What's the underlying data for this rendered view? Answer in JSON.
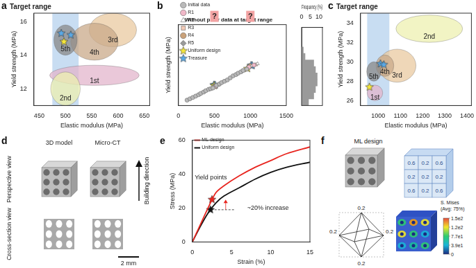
{
  "chart_data": [
    {
      "panel": "a",
      "type": "scatter",
      "title": "Target range",
      "x_label": "Elastic modulus (MPa)",
      "y_label": "Yield strength (MPa)",
      "xlim": [
        440,
        660
      ],
      "xticks": [
        450,
        500,
        550,
        600,
        650
      ],
      "ylim": [
        11,
        16.5
      ],
      "yticks": [
        12,
        14,
        16
      ],
      "target_range": [
        475,
        525
      ],
      "regions": [
        {
          "name": "1st",
          "center": [
            555,
            12.8
          ],
          "radii": [
            85,
            0.6
          ],
          "color": "#e3b5cc"
        },
        {
          "name": "2nd",
          "center": [
            500,
            12.0
          ],
          "radii": [
            28,
            1.0
          ],
          "color": "#eef0b0"
        },
        {
          "name": "3rd",
          "center": [
            590,
            15.5
          ],
          "radii": [
            45,
            1.0
          ],
          "color": "#e9c9a0"
        },
        {
          "name": "4th",
          "center": [
            555,
            14.8
          ],
          "radii": [
            45,
            1.1
          ],
          "color": "#c9a98a"
        },
        {
          "name": "5th",
          "center": [
            500,
            14.9
          ],
          "radii": [
            22,
            0.9
          ],
          "color": "#8a8a8a"
        }
      ],
      "series": [
        {
          "color": "#f5e63a",
          "marker": "star",
          "x": [
            497
          ],
          "values": [
            14.8
          ]
        },
        {
          "color": "#5aa9e6",
          "marker": "star",
          "x": [
            492,
            510
          ],
          "values": [
            15.3,
            15.2
          ]
        }
      ]
    },
    {
      "panel": "b",
      "type": "scatter",
      "title": "Without prior data at target range",
      "x_label": "Elastic modulus (MPa)",
      "y_label": "Yield strength (MPa)",
      "xlim": [
        0,
        1500
      ],
      "xticks": [
        0,
        500,
        1000,
        1500
      ],
      "ylim": [
        0,
        60
      ],
      "tick_labels": "x",
      "legend": "upper left",
      "annotations": [
        {
          "text": "?",
          "x": 500
        },
        {
          "text": "?",
          "x": 1000
        }
      ],
      "series": [
        {
          "name": "Initial data",
          "color": "#b9b9b9",
          "marker": "circle",
          "x": [
            120,
            160,
            200,
            240,
            280,
            310,
            350,
            380,
            420,
            450,
            480,
            530,
            570,
            600,
            640,
            680,
            720,
            760,
            800,
            830,
            870,
            900,
            950
          ],
          "values": [
            4,
            5,
            6,
            7,
            8,
            9,
            10,
            11,
            12,
            12.5,
            13,
            15,
            16,
            17,
            18,
            19,
            20.5,
            22,
            23,
            24,
            25,
            26,
            27
          ]
        },
        {
          "name": "R1",
          "color": "#f0b8c8",
          "marker": "circle",
          "x": [
            520,
            980,
            1050
          ],
          "values": [
            14.3,
            28.5,
            30
          ]
        },
        {
          "name": "R2",
          "color": "#ffffff",
          "marker": "triangle",
          "x": [
            540,
            1020,
            1100
          ],
          "values": [
            15,
            29.5,
            31
          ]
        },
        {
          "name": "R3",
          "color": "#f2c9b5",
          "marker": "square",
          "x": [
            560,
            1080
          ],
          "values": [
            15.5,
            30.5
          ]
        },
        {
          "name": "R4",
          "color": "#caa27a",
          "marker": "circle",
          "x": [
            510,
            1000
          ],
          "values": [
            14.5,
            29.6
          ]
        },
        {
          "name": "R5",
          "color": "#9a9a9a",
          "marker": "diamond",
          "x": [
            500,
            990
          ],
          "values": [
            14.8,
            29.2
          ]
        },
        {
          "name": "Uniform design",
          "color": "#f5e63a",
          "marker": "star",
          "x": [
            497,
            960
          ],
          "values": [
            14.8,
            27.4
          ]
        },
        {
          "name": "Treasure",
          "color": "#5aa9e6",
          "marker": "star",
          "x": [
            492,
            510,
            1010,
            1025
          ],
          "values": [
            15.3,
            15.2,
            29.8,
            29.7
          ]
        }
      ]
    },
    {
      "type": "histogram",
      "orientation": "horizontal",
      "x_label": "Frequency (%)",
      "xlim": [
        0,
        12
      ],
      "xticks": [
        0,
        5,
        10
      ],
      "ylim": [
        0,
        60
      ],
      "tick_labels": "x",
      "bins": [
        0,
        5,
        10,
        15,
        20,
        25,
        30,
        35,
        40,
        45
      ],
      "values": [
        4,
        7,
        8,
        9,
        9,
        8,
        7,
        2,
        1
      ],
      "color": "#9a9a9a"
    },
    {
      "panel": "c",
      "type": "scatter",
      "title": "Target range",
      "x_label": "Elastic modulus (MPa)",
      "y_label": "Yield strength (MPa)",
      "xlim": [
        920,
        1420
      ],
      "xticks": [
        1000,
        1100,
        1200,
        1300,
        1400
      ],
      "ylim": [
        25.5,
        35
      ],
      "yticks": [
        26,
        28,
        30,
        32,
        34
      ],
      "target_range": [
        950,
        1050
      ],
      "regions": [
        {
          "name": "2nd",
          "center": [
            1230,
            33.4
          ],
          "radii": [
            150,
            1.4
          ],
          "color": "#eef0b0"
        },
        {
          "name": "3rd",
          "center": [
            1085,
            29.6
          ],
          "radii": [
            85,
            1.7
          ],
          "color": "#e9c9a0"
        },
        {
          "name": "1st",
          "center": [
            985,
            26.8
          ],
          "radii": [
            35,
            0.8
          ],
          "color": "#e3b5cc"
        },
        {
          "name": "4th",
          "center": [
            1030,
            29.6
          ],
          "radii": [
            40,
            1.1
          ],
          "color": "#c9a98a"
        },
        {
          "name": "5th",
          "center": [
            980,
            29.0
          ],
          "radii": [
            32,
            1.0
          ],
          "color": "#8a8a8a"
        }
      ],
      "series": [
        {
          "color": "#f5e63a",
          "marker": "star",
          "x": [
            960
          ],
          "values": [
            27.4
          ]
        },
        {
          "color": "#5aa9e6",
          "marker": "star",
          "x": [
            1010,
            1025
          ],
          "values": [
            29.8,
            29.7
          ]
        }
      ]
    },
    {
      "panel": "e",
      "type": "line",
      "x_label": "Strain (%)",
      "y_label": "Stress (MPa)",
      "xlim": [
        0,
        15
      ],
      "xticks": [
        0,
        5,
        10,
        15
      ],
      "ylim": [
        0,
        60
      ],
      "yticks": [
        0,
        20,
        40,
        60
      ],
      "legend": "upper left",
      "x": [
        0,
        1,
        2,
        3,
        4,
        6,
        8,
        10,
        12,
        15
      ],
      "series": [
        {
          "name": "ML design",
          "color": "#e8251f",
          "values": [
            0,
            10,
            20,
            29,
            33,
            39,
            44,
            48,
            52,
            56
          ]
        },
        {
          "name": "Uniform design",
          "color": "#111111",
          "values": [
            0,
            9,
            17,
            23,
            27,
            32,
            37,
            41,
            44,
            47
          ]
        }
      ],
      "yield_points": {
        "x": [
          2.5,
          2.3
        ],
        "values": [
          25,
          19
        ],
        "colors": [
          "#e8251f",
          "#111111"
        ]
      },
      "annotations": [
        {
          "text": "Yield points",
          "x": 0.3,
          "y": 38
        },
        {
          "text": "~20% increase",
          "x": 7,
          "y": 20
        }
      ]
    }
  ],
  "figures": {
    "d": {
      "panel": "d",
      "columns": [
        "3D model",
        "Micro-CT"
      ],
      "rows": [
        "Perspective view",
        "Cross-section view"
      ],
      "arrow_label": "Building direction",
      "scale_bar": "2 mm"
    },
    "f": {
      "panel": "f",
      "title": "ML design",
      "face_values": [
        [
          0.6,
          0.2,
          0.6
        ],
        [
          0.2,
          0.2,
          0.2
        ],
        [
          0.6,
          0.2,
          0.6
        ]
      ],
      "node_values": [
        0.2,
        0.2,
        0.2,
        0.2
      ],
      "colorbar": {
        "label": [
          "S. Mises",
          "(Avg: 75%)"
        ],
        "range": [
          0,
          154
        ],
        "ticks": [
          {
            "value": 154,
            "label": "1.5e2"
          },
          {
            "value": 115.5,
            "label": "1.2e2"
          },
          {
            "value": 77,
            "label": "7.7e1"
          },
          {
            "value": 38.5,
            "label": "3.9e1"
          },
          0
        ]
      }
    }
  }
}
